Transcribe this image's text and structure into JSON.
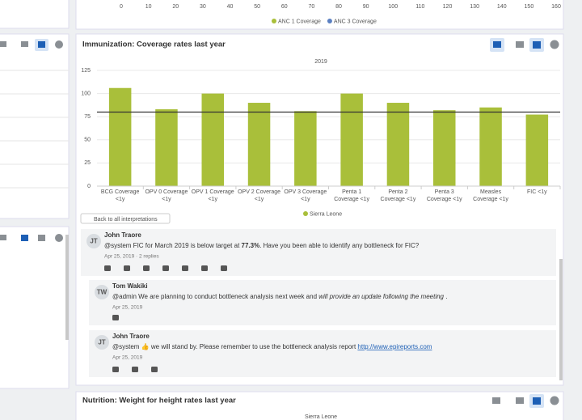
{
  "top_chart": {
    "xlim": [
      0,
      160
    ],
    "xticks": [
      0,
      10,
      20,
      30,
      40,
      50,
      60,
      70,
      80,
      90,
      100,
      110,
      120,
      130,
      140,
      150,
      160
    ],
    "series": [
      {
        "name": "ANC 1 Coverage",
        "color": "#a9bf3a"
      },
      {
        "name": "ANC 3 Coverage",
        "color": "#5b80c2"
      }
    ]
  },
  "chart_data": {
    "type": "bar",
    "title": "Immunization: Coverage rates last year",
    "subtitle": "2019",
    "categories": [
      "BCG Coverage\n<1y",
      "OPV 0 Coverage\n<1y",
      "OPV 1 Coverage\n<1y",
      "OPV 2 Coverage\n<1y",
      "OPV 3 Coverage\n<1y",
      "Penta 1\nCoverage <1y",
      "Penta 2\nCoverage <1y",
      "Penta 3\nCoverage <1y",
      "Measles\nCoverage <1y",
      "FIC <1y"
    ],
    "series": [
      {
        "name": "Sierra Leone",
        "color": "#a9bf3a",
        "values": [
          106,
          83,
          100,
          90,
          81,
          100,
          90,
          82,
          85,
          77.3
        ]
      }
    ],
    "target_line": 80,
    "ylim": [
      0,
      125
    ],
    "yticks": [
      0,
      25,
      50,
      75,
      100,
      125
    ],
    "grid": true
  },
  "interpretations": {
    "back": "Back to all interpretations",
    "comments": [
      {
        "initials": "JT",
        "author": "John Traore",
        "indent": false,
        "text": [
          {
            "t": "@system FIC for March 2019 is below target at ",
            "style": "normal"
          },
          {
            "t": "77.3%",
            "style": "bold"
          },
          {
            "t": ". Have you been able to identify any bottleneck for FIC?",
            "style": "normal"
          }
        ],
        "meta": "Apr 25, 2019 · 2 replies"
      },
      {
        "initials": "TW",
        "author": "Tom Wakiki",
        "indent": true,
        "text": [
          {
            "t": "@admin We are planning to conduct bottleneck analysis next week and ",
            "style": "normal"
          },
          {
            "t": "will provide an update following the meeting",
            "style": "italic"
          },
          {
            "t": " .",
            "style": "normal"
          }
        ],
        "meta": "Apr 25, 2019"
      },
      {
        "initials": "JT",
        "author": "John Traore",
        "indent": true,
        "text": [
          {
            "t": "@system 👍 we will stand by. Please remember to use the bottleneck analysis report ",
            "style": "normal"
          },
          {
            "t": "http://www.epireports.com",
            "style": "link"
          }
        ],
        "meta": "Apr 25, 2019"
      }
    ]
  },
  "nutrition": {
    "title": "Nutrition: Weight for height rates last year",
    "subtitle": "Sierra Leone"
  }
}
